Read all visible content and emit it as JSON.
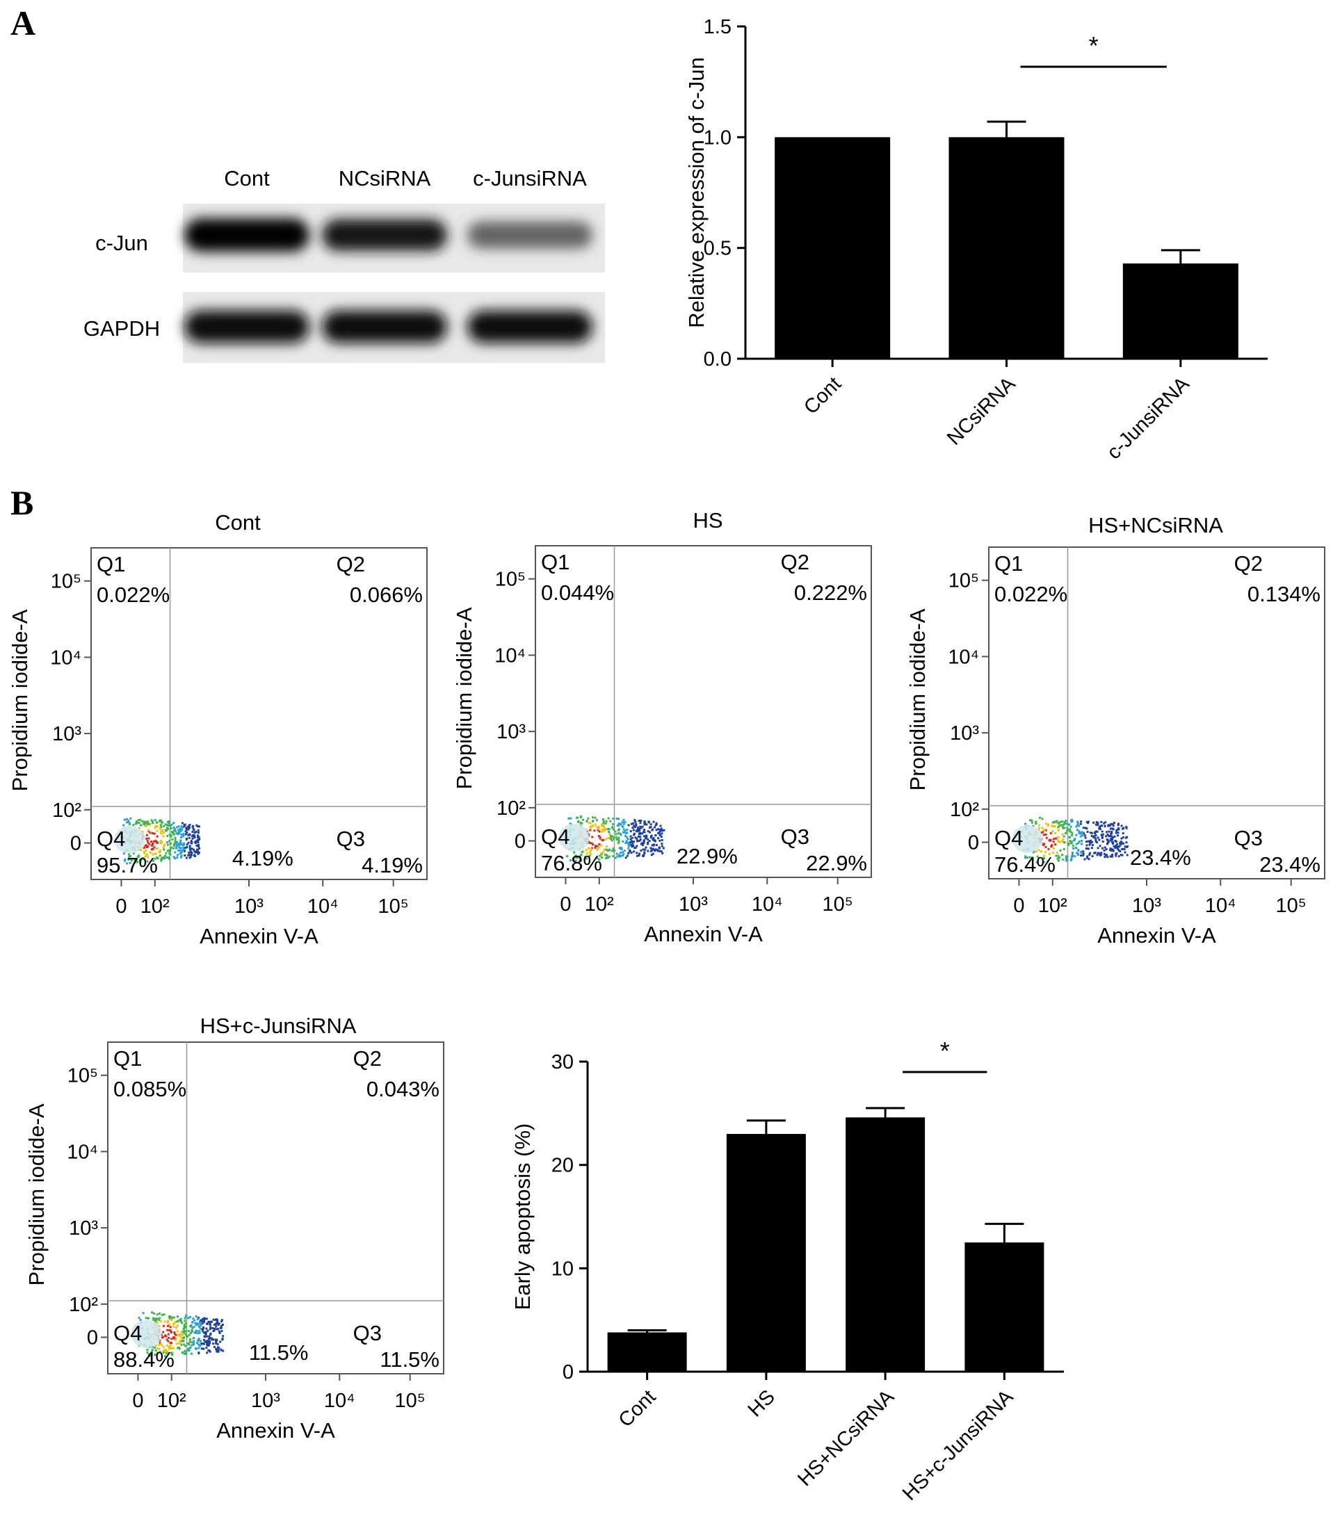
{
  "panels": {
    "a": "A",
    "b": "B"
  },
  "western_blot": {
    "lanes": [
      "Cont",
      "NCsiRNA",
      "c-JunsiRNA"
    ],
    "rows": [
      {
        "label": "c-Jun",
        "intensity": [
          1.0,
          0.88,
          0.5
        ]
      },
      {
        "label": "GAPDH",
        "intensity": [
          0.95,
          0.93,
          0.93
        ]
      }
    ]
  },
  "flow_plots": [
    {
      "title": "Cont",
      "xlabel": "Annexin V-A",
      "ylabel": "Propidium iodide-A",
      "q1": "Q1",
      "q1_val": "0.022%",
      "q2": "Q2",
      "q2_val": "0.066%",
      "q3": "Q3",
      "q3_val": "4.19%",
      "q4": "Q4",
      "q4_val": "95.7%",
      "inner_val": "4.19%"
    },
    {
      "title": "HS",
      "xlabel": "Annexin V-A",
      "ylabel": "Propidium iodide-A",
      "q1": "Q1",
      "q1_val": "0.044%",
      "q2": "Q2",
      "q2_val": "0.222%",
      "q3": "Q3",
      "q3_val": "22.9%",
      "q4": "Q4",
      "q4_val": "76.8%",
      "inner_val": "22.9%"
    },
    {
      "title": "HS+NCsiRNA",
      "xlabel": "Annexin V-A",
      "ylabel": "Propidium iodide-A",
      "q1": "Q1",
      "q1_val": "0.022%",
      "q2": "Q2",
      "q2_val": "0.134%",
      "q3": "Q3",
      "q3_val": "23.4%",
      "q4": "Q4",
      "q4_val": "76.4%",
      "inner_val": "23.4%"
    },
    {
      "title": "HS+c-JunsiRNA",
      "xlabel": "Annexin V-A",
      "ylabel": "Propidium iodide-A",
      "q1": "Q1",
      "q1_val": "0.085%",
      "q2": "Q2",
      "q2_val": "0.043%",
      "q3": "Q3",
      "q3_val": "11.5%",
      "q4": "Q4",
      "q4_val": "88.4%",
      "inner_val": "11.5%"
    }
  ],
  "flow_axis": {
    "x_ticks": [
      "0",
      "10²",
      "10³",
      "10⁴",
      "10⁵"
    ],
    "y_ticks": [
      "10⁵",
      "10⁴",
      "10³",
      "10²",
      "0"
    ]
  },
  "chart_data": [
    {
      "type": "bar",
      "categories": [
        "Cont",
        "NCsiRNA",
        "c-JunsiRNA"
      ],
      "values": [
        1.0,
        1.0,
        0.43
      ],
      "errors": [
        0,
        0.07,
        0.06
      ],
      "ylabel": "Relative expression of c-Jun",
      "ylim": [
        0,
        1.5
      ],
      "yticks": [
        "0.0",
        "0.5",
        "1.0",
        "1.5"
      ],
      "significance": {
        "between": [
          "NCsiRNA",
          "c-JunsiRNA"
        ],
        "label": "*"
      }
    },
    {
      "type": "bar",
      "categories": [
        "Cont",
        "HS",
        "HS+NCsiRNA",
        "HS+c-JunsiRNA"
      ],
      "values": [
        3.8,
        23.0,
        24.6,
        12.5
      ],
      "errors": [
        0.2,
        1.3,
        0.9,
        1.8
      ],
      "ylabel": "Early apoptosis (%)",
      "ylim": [
        0,
        30
      ],
      "yticks": [
        "0",
        "10",
        "20",
        "30"
      ],
      "significance": {
        "between": [
          "HS+NCsiRNA",
          "HS+c-JunsiRNA"
        ],
        "label": "*"
      }
    }
  ]
}
